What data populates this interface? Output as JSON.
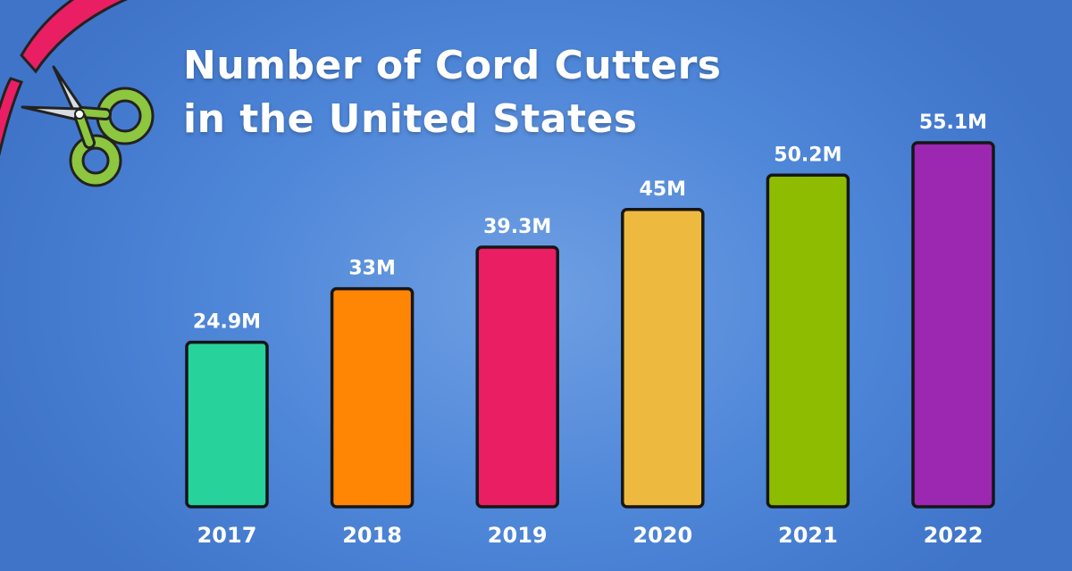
{
  "chart_data": {
    "type": "bar",
    "title_lines": [
      "Number of Cord Cutters",
      "in the United States"
    ],
    "categories": [
      "2017",
      "2018",
      "2019",
      "2020",
      "2021",
      "2022"
    ],
    "values": [
      24.9,
      33,
      39.3,
      45,
      50.2,
      55.1
    ],
    "value_labels": [
      "24.9M",
      "33M",
      "39.3M",
      "45M",
      "50.2M",
      "55.1M"
    ],
    "colors": [
      "#27d39b",
      "#ff8605",
      "#e91e63",
      "#eeb93f",
      "#8dbc00",
      "#9c27b0"
    ],
    "xlabel": "",
    "ylabel": "",
    "ylim": [
      0,
      60
    ],
    "grid": false,
    "legend": "none"
  },
  "decoration": {
    "icon": "scissors-icon",
    "ribbon_color": "#e91e63",
    "scissor_handle_color": "#8dc63f"
  }
}
